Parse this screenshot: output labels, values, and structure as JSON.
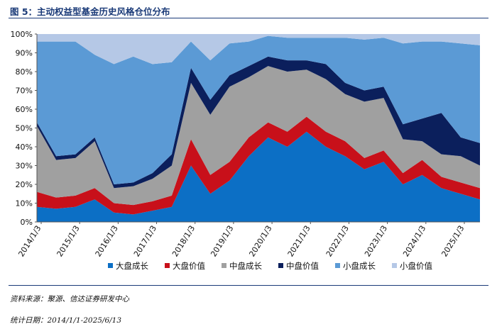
{
  "title": "图 5：主动权益型基金历史风格仓位分布",
  "source": "资料来源：聚源、信达证券研发中心",
  "stat_date": "统计日期：2014/1/1-2025/6/13",
  "chart_data": {
    "type": "area",
    "stacked": true,
    "normalized_percent": true,
    "x_ticks": [
      "2014/1/3",
      "2015/1/3",
      "2016/1/3",
      "2017/1/3",
      "2018/1/3",
      "2019/1/3",
      "2020/1/3",
      "2021/1/3",
      "2022/1/3",
      "2023/1/3",
      "2024/1/3",
      "2025/1/3"
    ],
    "y_ticks": [
      "0%",
      "10%",
      "20%",
      "30%",
      "40%",
      "50%",
      "60%",
      "70%",
      "80%",
      "90%",
      "100%"
    ],
    "ylim": [
      0,
      100
    ],
    "legend_position": "bottom",
    "x": [
      "2014/1",
      "2014/7",
      "2015/1",
      "2015/7",
      "2016/1",
      "2016/7",
      "2017/1",
      "2017/7",
      "2018/1",
      "2018/7",
      "2019/1",
      "2019/7",
      "2020/1",
      "2020/7",
      "2021/1",
      "2021/7",
      "2022/1",
      "2022/7",
      "2023/1",
      "2023/7",
      "2024/1",
      "2024/7",
      "2025/1",
      "2025/6"
    ],
    "series": [
      {
        "name": "大盘成长",
        "color": "#0c6fc5",
        "values": [
          8,
          7,
          8,
          12,
          5,
          4,
          6,
          8,
          30,
          15,
          22,
          35,
          45,
          40,
          48,
          40,
          35,
          28,
          32,
          20,
          25,
          18,
          15,
          12
        ]
      },
      {
        "name": "大盘价值",
        "color": "#c8101a",
        "values": [
          8,
          6,
          6,
          6,
          5,
          5,
          5,
          6,
          14,
          10,
          10,
          10,
          8,
          8,
          8,
          8,
          8,
          6,
          6,
          6,
          8,
          6,
          6,
          6
        ]
      },
      {
        "name": "中盘成长",
        "color": "#a0a0a0",
        "values": [
          35,
          20,
          20,
          25,
          8,
          10,
          12,
          16,
          30,
          32,
          40,
          32,
          30,
          32,
          25,
          28,
          25,
          30,
          28,
          18,
          10,
          12,
          14,
          12
        ]
      },
      {
        "name": "中盘价值",
        "color": "#0b1f5c",
        "values": [
          2,
          2,
          2,
          2,
          2,
          2,
          3,
          6,
          8,
          8,
          6,
          6,
          5,
          6,
          5,
          8,
          6,
          6,
          6,
          8,
          12,
          22,
          10,
          12
        ]
      },
      {
        "name": "小盘成长",
        "color": "#5b9ad5",
        "values": [
          43,
          61,
          60,
          44,
          64,
          67,
          58,
          49,
          14,
          21,
          17,
          13,
          11,
          12,
          12,
          14,
          24,
          27,
          26,
          43,
          41,
          38,
          50,
          52
        ]
      },
      {
        "name": "小盘价值",
        "color": "#b5c8e6",
        "values": [
          4,
          4,
          4,
          11,
          16,
          12,
          16,
          15,
          4,
          14,
          5,
          4,
          1,
          2,
          2,
          2,
          2,
          3,
          2,
          5,
          4,
          4,
          5,
          6
        ]
      }
    ]
  }
}
